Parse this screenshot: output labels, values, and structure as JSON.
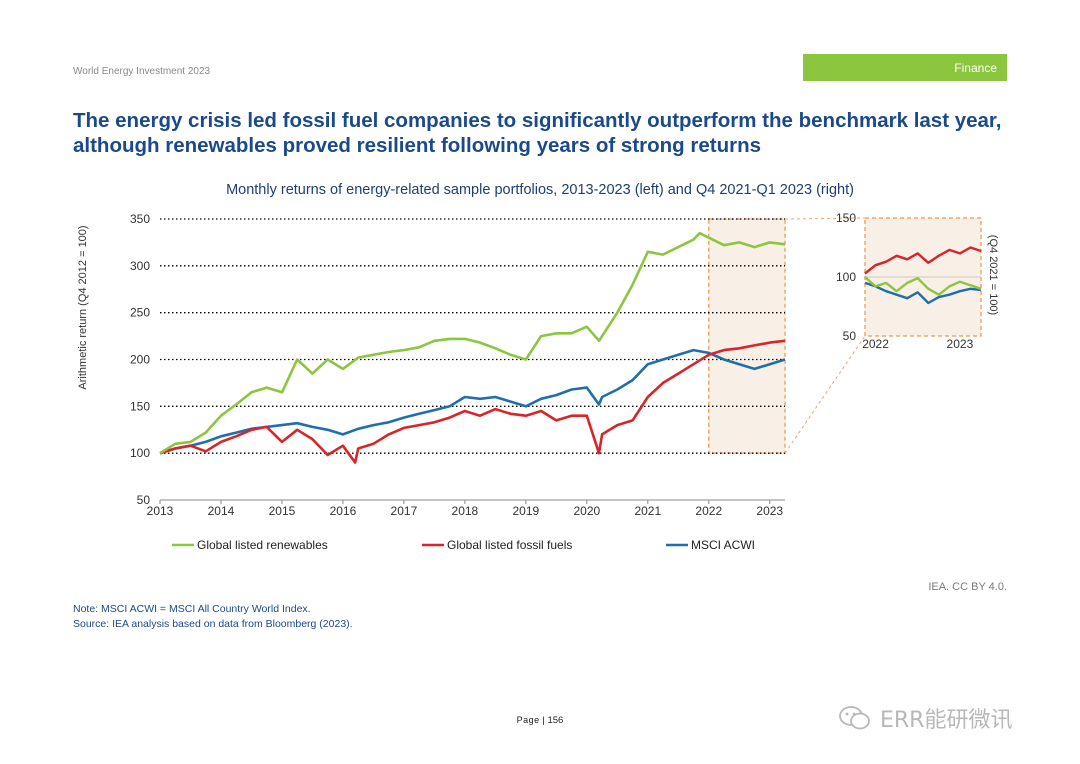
{
  "header": {
    "report": "World Energy Investment 2023",
    "section": "Finance"
  },
  "headline": {
    "line1": "The energy crisis led fossil fuel companies to significantly outperform the benchmark last year,",
    "line2": "although renewables proved resilient following years of strong returns"
  },
  "chart_title": "Monthly returns of energy-related sample portfolios, 2013-2023 (left) and Q4 2021-Q1 2023 (right)",
  "colors": {
    "renewables": "#8cc63f",
    "fossil": "#d7252a",
    "msci": "#1f6fae",
    "highlight_fill": "#f8efe6",
    "highlight_border": "#f0a868",
    "accent": "#8cc63f",
    "title": "#1b4a8c"
  },
  "chart_data": [
    {
      "type": "line",
      "ylabel": "Arithmetic return (Q4 2012 = 100)",
      "ylim": [
        50,
        350
      ],
      "yticks": [
        50,
        100,
        150,
        200,
        250,
        300,
        350
      ],
      "xlim": [
        2013,
        2023.25
      ],
      "xticks": [
        2013,
        2014,
        2015,
        2016,
        2017,
        2018,
        2019,
        2020,
        2021,
        2022,
        2023
      ],
      "highlight_range": [
        2022,
        2023.25
      ],
      "grid": "dotted horizontal",
      "legend": "bottom",
      "series": [
        {
          "name": "Global listed renewables",
          "x": [
            2013,
            2013.25,
            2013.5,
            2013.75,
            2014,
            2014.25,
            2014.5,
            2014.75,
            2015,
            2015.25,
            2015.5,
            2015.75,
            2016,
            2016.25,
            2016.5,
            2016.75,
            2017,
            2017.25,
            2017.5,
            2017.75,
            2018,
            2018.25,
            2018.5,
            2018.75,
            2019,
            2019.25,
            2019.5,
            2019.75,
            2020,
            2020.2,
            2020.25,
            2020.5,
            2020.75,
            2021,
            2021.25,
            2021.5,
            2021.75,
            2021.85,
            2022,
            2022.25,
            2022.5,
            2022.75,
            2023,
            2023.25
          ],
          "values": [
            100,
            110,
            112,
            122,
            140,
            152,
            165,
            170,
            165,
            200,
            185,
            200,
            190,
            202,
            205,
            208,
            210,
            213,
            220,
            222,
            222,
            218,
            212,
            205,
            200,
            225,
            228,
            228,
            235,
            220,
            225,
            250,
            280,
            315,
            312,
            320,
            328,
            335,
            330,
            322,
            325,
            320,
            325,
            323
          ]
        },
        {
          "name": "Global listed fossil fuels",
          "x": [
            2013,
            2013.25,
            2013.5,
            2013.75,
            2014,
            2014.25,
            2014.5,
            2014.75,
            2015,
            2015.25,
            2015.5,
            2015.75,
            2016,
            2016.2,
            2016.25,
            2016.5,
            2016.75,
            2017,
            2017.25,
            2017.5,
            2017.75,
            2018,
            2018.25,
            2018.5,
            2018.75,
            2019,
            2019.25,
            2019.5,
            2019.75,
            2020,
            2020.2,
            2020.25,
            2020.5,
            2020.75,
            2021,
            2021.25,
            2021.5,
            2021.75,
            2022,
            2022.25,
            2022.5,
            2022.75,
            2023,
            2023.25
          ],
          "values": [
            100,
            105,
            108,
            102,
            112,
            118,
            125,
            128,
            112,
            125,
            115,
            98,
            108,
            90,
            105,
            110,
            120,
            127,
            130,
            133,
            138,
            145,
            140,
            147,
            142,
            140,
            145,
            135,
            140,
            140,
            100,
            120,
            130,
            135,
            160,
            175,
            185,
            195,
            205,
            210,
            212,
            215,
            218,
            220
          ]
        },
        {
          "name": "MSCI ACWI",
          "x": [
            2013,
            2013.25,
            2013.5,
            2013.75,
            2014,
            2014.25,
            2014.5,
            2014.75,
            2015,
            2015.25,
            2015.5,
            2015.75,
            2016,
            2016.25,
            2016.5,
            2016.75,
            2017,
            2017.25,
            2017.5,
            2017.75,
            2018,
            2018.25,
            2018.5,
            2018.75,
            2019,
            2019.25,
            2019.5,
            2019.75,
            2020,
            2020.2,
            2020.25,
            2020.5,
            2020.75,
            2021,
            2021.25,
            2021.5,
            2021.75,
            2022,
            2022.25,
            2022.5,
            2022.75,
            2023,
            2023.25
          ],
          "values": [
            100,
            105,
            108,
            112,
            118,
            122,
            126,
            128,
            130,
            132,
            128,
            125,
            120,
            126,
            130,
            133,
            138,
            142,
            146,
            150,
            160,
            158,
            160,
            155,
            150,
            158,
            162,
            168,
            170,
            152,
            160,
            168,
            178,
            195,
            200,
            205,
            210,
            207,
            200,
            195,
            190,
            195,
            200
          ]
        }
      ]
    },
    {
      "type": "line",
      "ylabel": "(Q4 2021 = 100)",
      "ylim": [
        50,
        150
      ],
      "yticks": [
        50,
        100,
        150
      ],
      "xlim": [
        2021.875,
        2023.25
      ],
      "xticks": [
        2022,
        2023
      ],
      "series": [
        {
          "name": "Global listed renewables",
          "x": [
            2021.875,
            2022,
            2022.125,
            2022.25,
            2022.375,
            2022.5,
            2022.625,
            2022.75,
            2022.875,
            2023,
            2023.125,
            2023.25
          ],
          "values": [
            100,
            92,
            95,
            88,
            95,
            99,
            90,
            85,
            92,
            96,
            93,
            90
          ]
        },
        {
          "name": "Global listed fossil fuels",
          "x": [
            2021.875,
            2022,
            2022.125,
            2022.25,
            2022.375,
            2022.5,
            2022.625,
            2022.75,
            2022.875,
            2023,
            2023.125,
            2023.25
          ],
          "values": [
            103,
            110,
            113,
            118,
            115,
            120,
            112,
            118,
            123,
            120,
            125,
            122
          ]
        },
        {
          "name": "MSCI ACWI",
          "x": [
            2021.875,
            2022,
            2022.125,
            2022.25,
            2022.375,
            2022.5,
            2022.625,
            2022.75,
            2022.875,
            2023,
            2023.125,
            2023.25
          ],
          "values": [
            95,
            92,
            88,
            85,
            82,
            87,
            78,
            83,
            85,
            88,
            90,
            89
          ]
        }
      ]
    }
  ],
  "credit": "IEA. CC BY 4.0.",
  "note": {
    "line1": "Note: MSCI ACWI = MSCI All Country World Index.",
    "line2": "Source: IEA analysis based on data from Bloomberg (2023)."
  },
  "footer": {
    "page_label": "Page",
    "page_number": "156"
  },
  "watermark": {
    "icon": "wechat-icon",
    "text": "ERR能研微讯"
  }
}
